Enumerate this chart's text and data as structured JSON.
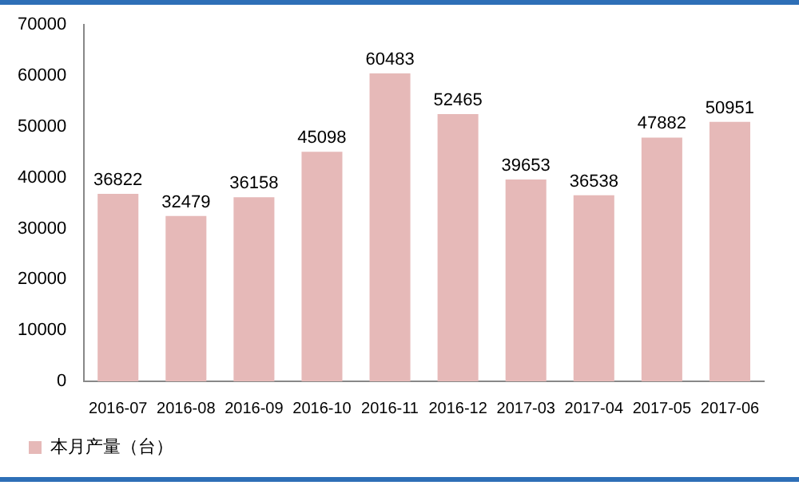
{
  "chart_data": {
    "type": "bar",
    "categories": [
      "2016-07",
      "2016-08",
      "2016-09",
      "2016-10",
      "2016-11",
      "2016-12",
      "2017-03",
      "2017-04",
      "2017-05",
      "2017-06"
    ],
    "series": [
      {
        "name": "本月产量（台）",
        "color": "#e6b9b8",
        "values": [
          36822,
          32479,
          36158,
          45098,
          60483,
          52465,
          39653,
          36538,
          47882,
          50951
        ]
      }
    ],
    "ylim": [
      0,
      70000
    ],
    "yticks": [
      0,
      10000,
      20000,
      30000,
      40000,
      50000,
      60000,
      70000
    ],
    "grid": false,
    "legend": "bottom",
    "data_labels": true
  }
}
